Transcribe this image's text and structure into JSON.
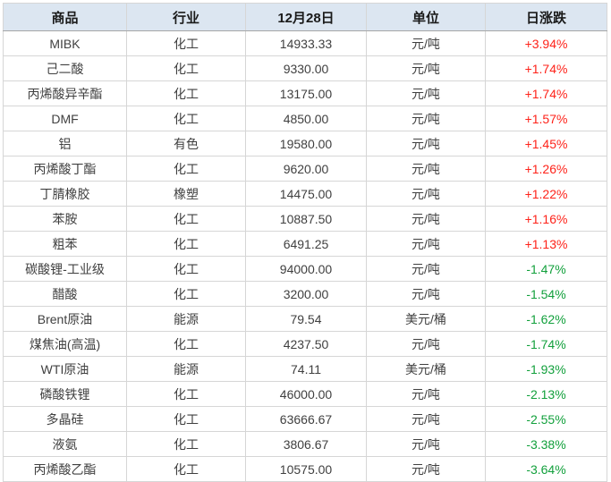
{
  "chart_data": {
    "type": "table",
    "columns": [
      "商品",
      "行业",
      "12月28日",
      "单位",
      "日涨跌"
    ],
    "column_keys": [
      "commodity",
      "industry",
      "price",
      "unit",
      "change"
    ],
    "rows": [
      [
        "MIBK",
        "化工",
        "14933.33",
        "元/吨",
        "+3.94%"
      ],
      [
        "己二酸",
        "化工",
        "9330.00",
        "元/吨",
        "+1.74%"
      ],
      [
        "丙烯酸异辛酯",
        "化工",
        "13175.00",
        "元/吨",
        "+1.74%"
      ],
      [
        "DMF",
        "化工",
        "4850.00",
        "元/吨",
        "+1.57%"
      ],
      [
        "铝",
        "有色",
        "19580.00",
        "元/吨",
        "+1.45%"
      ],
      [
        "丙烯酸丁酯",
        "化工",
        "9620.00",
        "元/吨",
        "+1.26%"
      ],
      [
        "丁腈橡胶",
        "橡塑",
        "14475.00",
        "元/吨",
        "+1.22%"
      ],
      [
        "苯胺",
        "化工",
        "10887.50",
        "元/吨",
        "+1.16%"
      ],
      [
        "粗苯",
        "化工",
        "6491.25",
        "元/吨",
        "+1.13%"
      ],
      [
        "碳酸锂-工业级",
        "化工",
        "94000.00",
        "元/吨",
        "-1.47%"
      ],
      [
        "醋酸",
        "化工",
        "3200.00",
        "元/吨",
        "-1.54%"
      ],
      [
        "Brent原油",
        "能源",
        "79.54",
        "美元/桶",
        "-1.62%"
      ],
      [
        "煤焦油(高温)",
        "化工",
        "4237.50",
        "元/吨",
        "-1.74%"
      ],
      [
        "WTI原油",
        "能源",
        "74.11",
        "美元/桶",
        "-1.93%"
      ],
      [
        "磷酸铁锂",
        "化工",
        "46000.00",
        "元/吨",
        "-2.13%"
      ],
      [
        "多晶硅",
        "化工",
        "63666.67",
        "元/吨",
        "-2.55%"
      ],
      [
        "液氨",
        "化工",
        "3806.67",
        "元/吨",
        "-3.38%"
      ],
      [
        "丙烯酸乙酯",
        "化工",
        "10575.00",
        "元/吨",
        "-3.64%"
      ]
    ]
  },
  "colors": {
    "header_bg": "#dce6f1",
    "header_text": "#1a1a1a",
    "body_text": "#404040",
    "grid_line": "#d6d6d6",
    "outer_border": "#a6a6a6",
    "positive_change": "#fe2219",
    "negative_change": "#12a03c"
  }
}
